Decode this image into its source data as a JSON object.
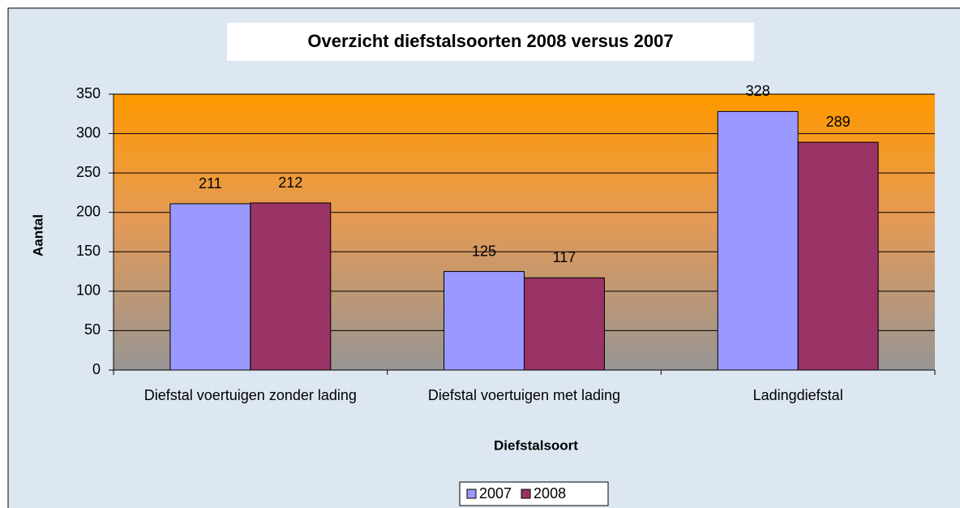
{
  "chart_data": {
    "type": "bar",
    "title": "Overzicht diefstalsoorten 2008 versus 2007",
    "x_label": "Diefstalsoort",
    "y_label": "Aantal",
    "categories": [
      "Diefstal voertuigen zonder lading",
      "Diefstal voertuigen met lading",
      "Ladingdiefstal"
    ],
    "series": [
      {
        "name": "2007",
        "color": "#9999ff",
        "values": [
          211,
          125,
          328
        ]
      },
      {
        "name": "2008",
        "color": "#993366",
        "values": [
          212,
          117,
          289
        ]
      }
    ],
    "ylim": [
      0,
      350
    ],
    "yticks": [
      0,
      50,
      100,
      150,
      200,
      250,
      300,
      350
    ],
    "grid": true,
    "legend": "bottom"
  }
}
